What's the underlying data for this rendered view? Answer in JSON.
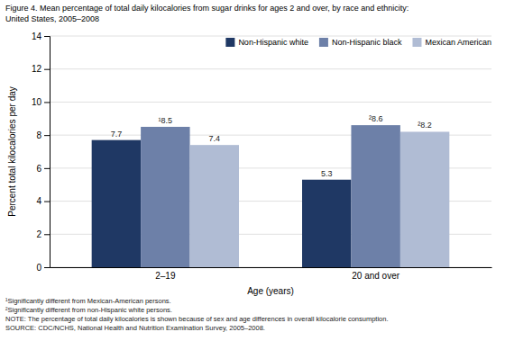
{
  "chart_data": {
    "type": "bar",
    "title": "Figure 4. Mean percentage of total daily kilocalories from sugar drinks for ages 2 and over, by race and ethnicity:",
    "subtitle": "United States, 2005–2008",
    "xlabel": "Age (years)",
    "ylabel": "Percent total kilocalories per day",
    "categories": [
      "2–19",
      "20 and over"
    ],
    "series": [
      {
        "name": "Non-Hispanic white",
        "color": "#1f3864",
        "values": [
          7.7,
          5.3
        ],
        "value_labels": [
          "7.7",
          "5.3"
        ]
      },
      {
        "name": "Non-Hispanic black",
        "color": "#6d80a8",
        "values": [
          8.5,
          8.6
        ],
        "value_labels": [
          "¹8.5",
          "²8.6"
        ]
      },
      {
        "name": "Mexican American",
        "color": "#b0bcd4",
        "values": [
          7.4,
          8.2
        ],
        "value_labels": [
          "7.4",
          "²8.2"
        ]
      }
    ],
    "ylim": [
      0,
      14
    ],
    "yticks": [
      0,
      2,
      4,
      6,
      8,
      10,
      12,
      14
    ],
    "grid": true,
    "legend": "upper right",
    "data_labels": true,
    "annotations": [
      "¹Significantly different from Mexican-American persons.",
      "²Significantly different from non-Hispanic white persons.",
      "NOTE: The percentage of total daily kilocalories is shown because of sex and age differences in overall kilocalorie consumption.",
      "SOURCE: CDC/NCHS, National Health and Nutrition Examination Survey, 2005–2008."
    ]
  }
}
